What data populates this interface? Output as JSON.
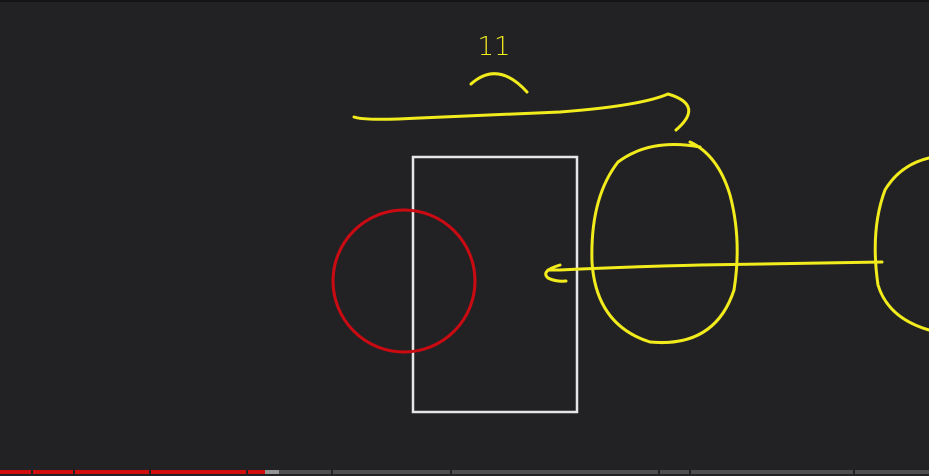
{
  "player": {
    "background_color": "#222225",
    "progress": {
      "played_fraction": 0.285,
      "buffered_fraction": 0.3,
      "played_color": "#d00e0e",
      "chapter_marks_fraction": [
        0.033,
        0.079,
        0.16,
        0.265,
        0.356,
        0.484,
        0.708,
        0.742,
        0.918
      ]
    }
  },
  "drawing": {
    "annotation_text": "11",
    "colors": {
      "yellow_ink": "#f2ec1d",
      "red_ink": "#cc0a12",
      "white_ink": "#e6e6e6"
    },
    "shapes": [
      "arc-mark",
      "curved-arrow-line",
      "white-rectangle",
      "red-circle",
      "yellow-oval",
      "left-arrow-line",
      "yellow-oval-partial"
    ]
  }
}
